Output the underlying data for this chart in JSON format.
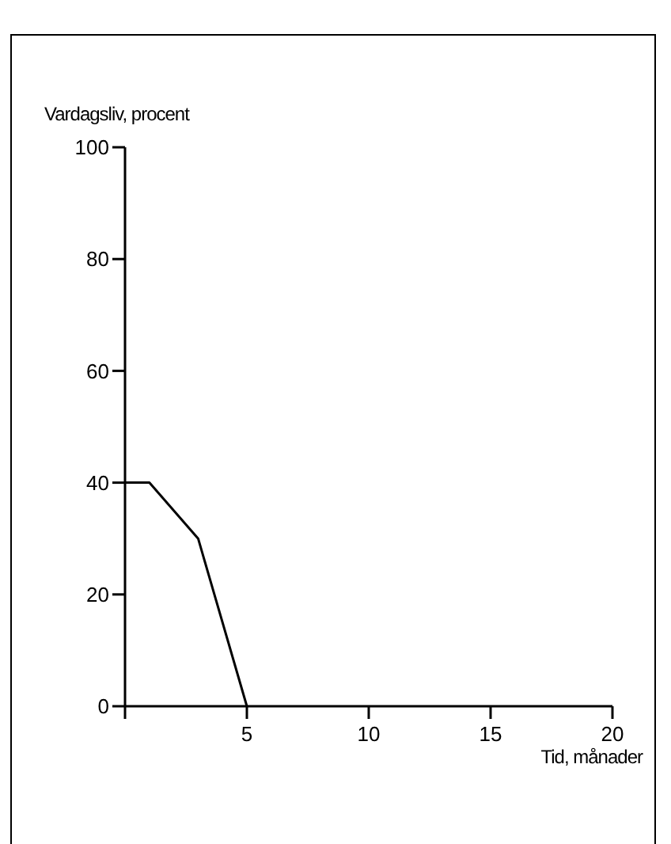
{
  "chart_data": {
    "type": "line",
    "ylabel": "Vardagsliv, procent",
    "xlabel": "Tid, månader",
    "x": [
      0,
      1,
      3,
      5
    ],
    "series": [
      {
        "color": "#000000",
        "values": [
          40,
          40,
          30,
          0
        ]
      }
    ],
    "xlim": [
      0,
      20
    ],
    "xticks": [
      {
        "value": 0,
        "label": null
      },
      5,
      10,
      15,
      20
    ],
    "ylim": [
      0,
      100
    ],
    "yticks": [
      0,
      20,
      40,
      60,
      80,
      100
    ],
    "grid": false,
    "marker": "none",
    "line_style": "solid"
  }
}
